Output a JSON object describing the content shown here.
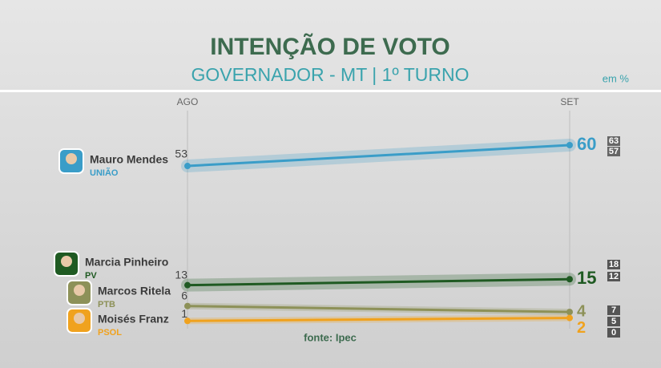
{
  "chart_data": {
    "type": "line",
    "title": "INTENÇÃO DE VOTO",
    "subtitle": "GOVERNADOR - MT | 1º TURNO",
    "unit": "em %",
    "source": "fonte: Ipec",
    "categories": [
      "AGO",
      "SET"
    ],
    "ylim": [
      0,
      60
    ],
    "series": [
      {
        "name": "Mauro Mendes",
        "party": "UNIÃO",
        "color": "#3a9dc8",
        "values": [
          53,
          60
        ],
        "bounds": [
          63,
          57
        ]
      },
      {
        "name": "Marcia Pinheiro",
        "party": "PV",
        "color": "#1f5a22",
        "values": [
          13,
          15
        ],
        "bounds": [
          18,
          12
        ]
      },
      {
        "name": "Marcos Ritela",
        "party": "PTB",
        "color": "#8d9158",
        "values": [
          6,
          4
        ],
        "bounds": [
          7
        ]
      },
      {
        "name": "Moisés Franz",
        "party": "PSOL",
        "color": "#f0a21e",
        "values": [
          1,
          2
        ],
        "bounds": [
          5,
          0
        ]
      }
    ]
  }
}
